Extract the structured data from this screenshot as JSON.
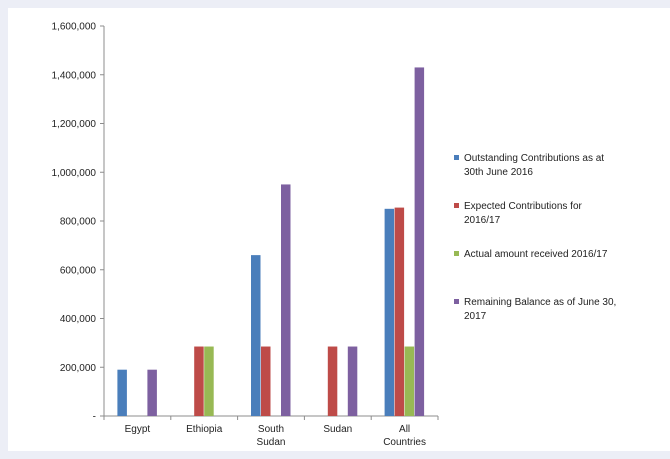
{
  "chart_data": {
    "type": "bar",
    "categories": [
      [
        "Egypt"
      ],
      [
        "Ethiopia"
      ],
      [
        "South",
        "Sudan"
      ],
      [
        "Sudan"
      ],
      [
        "All",
        "Countries"
      ]
    ],
    "series": [
      {
        "name": [
          "Outstanding Contributions as at",
          "30th June 2016"
        ],
        "color": "#4a7ebb",
        "values": [
          190000,
          0,
          660000,
          0,
          850000
        ]
      },
      {
        "name": [
          "Expected Contributions for",
          "2016/17"
        ],
        "color": "#be4b48",
        "values": [
          0,
          285000,
          285000,
          285000,
          855000
        ]
      },
      {
        "name": [
          "Actual amount received 2016/17"
        ],
        "color": "#98b954",
        "values": [
          0,
          285000,
          0,
          0,
          285000
        ]
      },
      {
        "name": [
          "Remaining Balance as of June 30,",
          "2017"
        ],
        "color": "#7d60a0",
        "values": [
          190000,
          0,
          950000,
          285000,
          1430000
        ]
      }
    ],
    "ylim": [
      0,
      1600000
    ],
    "yticks": [
      "-",
      "200,000",
      "400,000",
      "600,000",
      "800,000",
      "1,000,000",
      "1,200,000",
      "1,400,000",
      "1,600,000"
    ],
    "ytick_values": [
      0,
      200000,
      400000,
      600000,
      800000,
      1000000,
      1200000,
      1400000,
      1600000
    ],
    "legend_position": "right",
    "grid": false
  }
}
